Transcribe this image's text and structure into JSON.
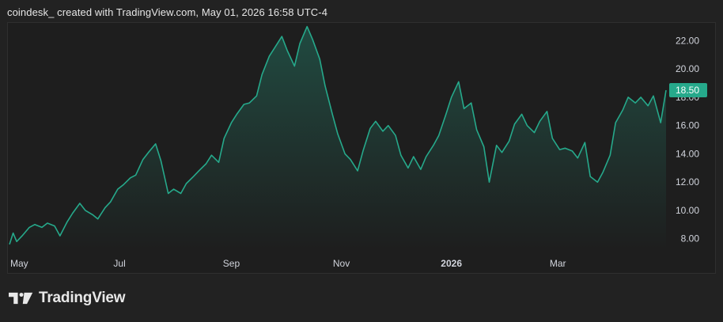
{
  "header": {
    "attribution": "coindesk_ created with TradingView.com, May 01, 2026 16:58 UTC-4"
  },
  "brand": {
    "name": "TradingView",
    "icon": "tradingview-logo-icon"
  },
  "colors": {
    "line": "#26a98b",
    "price_badge": "#26a98b",
    "background": "#1e1e1e",
    "text": "#d1d4dc"
  },
  "chart_data": {
    "type": "area",
    "title": "",
    "xlabel": "",
    "ylabel": "",
    "x_tick_labels": [
      "May",
      "Jul",
      "Sep",
      "Nov",
      "2026",
      "Mar"
    ],
    "y_tick_labels": [
      "8.00",
      "10.00",
      "12.00",
      "14.00",
      "16.00",
      "18.00",
      "20.00",
      "22.00"
    ],
    "ylim": [
      7.2,
      23.2
    ],
    "last_price": "18.50",
    "grid": false,
    "series": [
      {
        "x": [
          "2025-05-01",
          "2025-05-03",
          "2025-05-05",
          "2025-05-08",
          "2025-05-12",
          "2025-05-15",
          "2025-05-19",
          "2025-05-22",
          "2025-05-26",
          "2025-05-29",
          "2025-06-02",
          "2025-06-05",
          "2025-06-09",
          "2025-06-12",
          "2025-06-16",
          "2025-06-19",
          "2025-06-23",
          "2025-06-26",
          "2025-06-30",
          "2025-07-03",
          "2025-07-07",
          "2025-07-10",
          "2025-07-14",
          "2025-07-17",
          "2025-07-21",
          "2025-07-24",
          "2025-07-28",
          "2025-07-31",
          "2025-08-04",
          "2025-08-07",
          "2025-08-11",
          "2025-08-14",
          "2025-08-18",
          "2025-08-21",
          "2025-08-25",
          "2025-08-28",
          "2025-09-01",
          "2025-09-04",
          "2025-09-08",
          "2025-09-11",
          "2025-09-15",
          "2025-09-18",
          "2025-09-22",
          "2025-09-25",
          "2025-09-29",
          "2025-10-02",
          "2025-10-06",
          "2025-10-09",
          "2025-10-13",
          "2025-10-16",
          "2025-10-20",
          "2025-10-23",
          "2025-10-27",
          "2025-10-30",
          "2025-11-03",
          "2025-11-06",
          "2025-11-10",
          "2025-11-13",
          "2025-11-17",
          "2025-11-20",
          "2025-11-24",
          "2025-11-27",
          "2025-12-01",
          "2025-12-04",
          "2025-12-08",
          "2025-12-11",
          "2025-12-15",
          "2025-12-18",
          "2025-12-22",
          "2025-12-25",
          "2025-12-29",
          "2026-01-01",
          "2026-01-05",
          "2026-01-08",
          "2026-01-12",
          "2026-01-15",
          "2026-01-19",
          "2026-01-22",
          "2026-01-26",
          "2026-01-29",
          "2026-02-02",
          "2026-02-05",
          "2026-02-09",
          "2026-02-12",
          "2026-02-16",
          "2026-02-19",
          "2026-02-23",
          "2026-02-26",
          "2026-03-02",
          "2026-03-05",
          "2026-03-09",
          "2026-03-12",
          "2026-03-16",
          "2026-03-19",
          "2026-03-23",
          "2026-03-26",
          "2026-03-30",
          "2026-04-02",
          "2026-04-06",
          "2026-04-09",
          "2026-04-13",
          "2026-04-16",
          "2026-04-20",
          "2026-04-23",
          "2026-04-27",
          "2026-04-30"
        ],
        "values": [
          7.6,
          8.4,
          7.8,
          8.2,
          8.8,
          9.0,
          8.8,
          9.1,
          8.9,
          8.2,
          9.2,
          9.8,
          10.5,
          10.0,
          9.7,
          9.4,
          10.2,
          10.6,
          11.5,
          11.8,
          12.3,
          12.5,
          13.6,
          14.1,
          14.7,
          13.5,
          11.2,
          11.5,
          11.2,
          11.9,
          12.4,
          12.8,
          13.3,
          13.9,
          13.4,
          15.1,
          16.2,
          16.8,
          17.5,
          17.6,
          18.1,
          19.6,
          20.9,
          21.5,
          22.3,
          21.3,
          20.2,
          21.8,
          23.0,
          22.1,
          20.7,
          18.8,
          16.8,
          15.4,
          14.0,
          13.6,
          12.8,
          14.2,
          15.8,
          16.3,
          15.6,
          16.0,
          15.3,
          13.9,
          13.0,
          13.8,
          12.9,
          13.8,
          14.6,
          15.3,
          16.8,
          18.0,
          19.1,
          17.2,
          17.6,
          15.7,
          14.5,
          12.0,
          14.6,
          14.1,
          14.9,
          16.1,
          16.8,
          16.0,
          15.5,
          16.3,
          17.0,
          15.1,
          14.3,
          14.4,
          14.2,
          13.7,
          14.8,
          12.4,
          12.0,
          12.7,
          13.9,
          16.2,
          17.1,
          18.0,
          17.6,
          18.0,
          17.4,
          18.1,
          16.2,
          18.5
        ]
      }
    ]
  }
}
